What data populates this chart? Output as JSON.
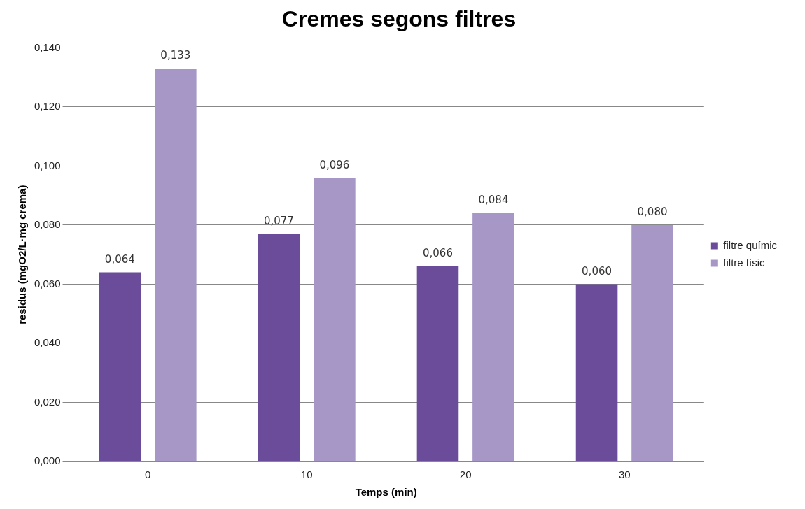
{
  "chart_data": {
    "type": "bar",
    "title": "Cremes segons filtres",
    "xlabel": "Temps (min)",
    "ylabel": "residus (mgO2/L·mg crema)",
    "categories": [
      "0",
      "10",
      "20",
      "30"
    ],
    "series": [
      {
        "name": "filtre químic",
        "color": "#6b4c9a",
        "values": [
          0.064,
          0.077,
          0.066,
          0.06
        ],
        "value_labels": [
          "0,064",
          "0,077",
          "0,066",
          "0,060"
        ]
      },
      {
        "name": "filtre físic",
        "color": "#a797c6",
        "values": [
          0.133,
          0.096,
          0.084,
          0.08
        ],
        "value_labels": [
          "0,133",
          "0,096",
          "0,084",
          "0,080"
        ]
      }
    ],
    "ylim": [
      0,
      0.14
    ],
    "yticks": [
      {
        "value": 0,
        "label": "0,000"
      },
      {
        "value": 0.02,
        "label": "0,020"
      },
      {
        "value": 0.04,
        "label": "0,040"
      },
      {
        "value": 0.06,
        "label": "0,060"
      },
      {
        "value": 0.08,
        "label": "0,080"
      },
      {
        "value": 0.1,
        "label": "0,100"
      },
      {
        "value": 0.12,
        "label": "0,120"
      },
      {
        "value": 0.14,
        "label": "0,140"
      }
    ],
    "grid": "y",
    "legend": "right"
  }
}
